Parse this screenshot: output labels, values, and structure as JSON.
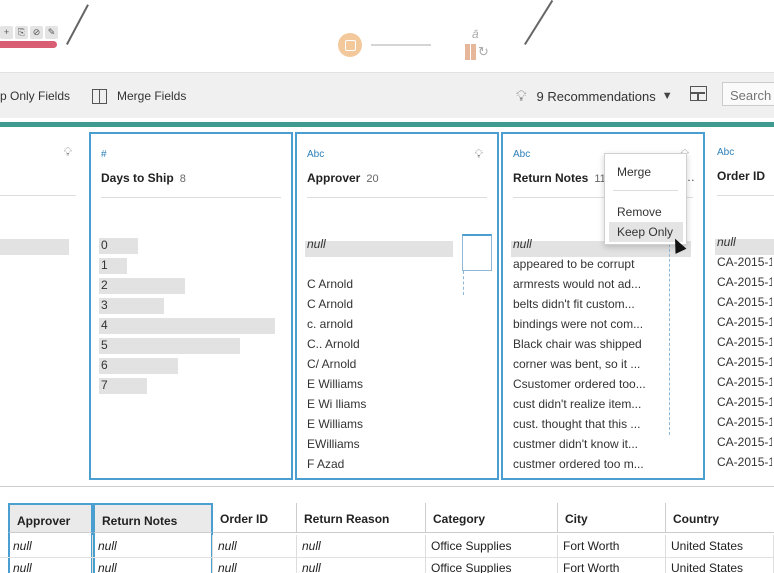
{
  "toolbar": {
    "keep_only_label": "p Only Fields",
    "merge_fields_label": "Merge Fields",
    "recommendations_label": "9 Recommendations",
    "search_placeholder": "Search"
  },
  "cards": {
    "partial": {
      "type": "",
      "title": ""
    },
    "days_to_ship": {
      "type": "#",
      "title": "Days to Ship",
      "count": "8",
      "values": [
        {
          "label": "0",
          "fraction": 0.22
        },
        {
          "label": "1",
          "fraction": 0.16
        },
        {
          "label": "2",
          "fraction": 0.49
        },
        {
          "label": "3",
          "fraction": 0.37
        },
        {
          "label": "4",
          "fraction": 1.0
        },
        {
          "label": "5",
          "fraction": 0.8
        },
        {
          "label": "6",
          "fraction": 0.45
        },
        {
          "label": "7",
          "fraction": 0.27
        }
      ]
    },
    "approver": {
      "type": "Abc",
      "title": "Approver",
      "count": "20",
      "values": [
        "null",
        "",
        "C  Arnold",
        "C Arnold",
        "c. arnold",
        "C.. Arnold",
        "C/ Arnold",
        "E   Williams",
        "E Wi lliams",
        "E Williams",
        "EWilliams",
        "F Azad"
      ]
    },
    "return_notes": {
      "type": "Abc",
      "title": "Return Notes",
      "count": "11",
      "values": [
        "null",
        "appeared to be corrupt",
        "armrests would not ad...",
        "belts didn't fit custom...",
        "bindings were not com...",
        "Black chair was shipped",
        "corner was bent, so it ...",
        "Csustomer ordered too...",
        "cust didn't realize item...",
        "cust. thought that this ...",
        "custmer didn't know it...",
        "custmer ordered too m..."
      ]
    },
    "order_id": {
      "type": "Abc",
      "title": "Order ID",
      "values": [
        "null",
        "CA-2015-1",
        "CA-2015-1",
        "CA-2015-1",
        "CA-2015-1",
        "CA-2015-1",
        "CA-2015-1",
        "CA-2015-1",
        "CA-2015-1",
        "CA-2015-1",
        "CA-2015-1",
        "CA-2015-1"
      ]
    }
  },
  "menu": {
    "merge": "Merge",
    "remove": "Remove",
    "keep_only": "Keep Only"
  },
  "grid": {
    "headers": [
      "Approver",
      "Return Notes",
      "Order ID",
      "Return Reason",
      "Category",
      "City",
      "Country"
    ],
    "rows": [
      [
        "null",
        "null",
        "null",
        "null",
        "Office Supplies",
        "Fort Worth",
        "United States"
      ],
      [
        "null",
        "null",
        "null",
        "null",
        "Office Supplies",
        "Fort Worth",
        "United States"
      ]
    ]
  },
  "flow": {
    "step_icons": [
      "+",
      "⎘",
      "⊘",
      "✎"
    ]
  },
  "colors": {
    "accent": "#3f9a8f",
    "selection": "#4a9fd0",
    "step_bar": "#d95d73"
  }
}
